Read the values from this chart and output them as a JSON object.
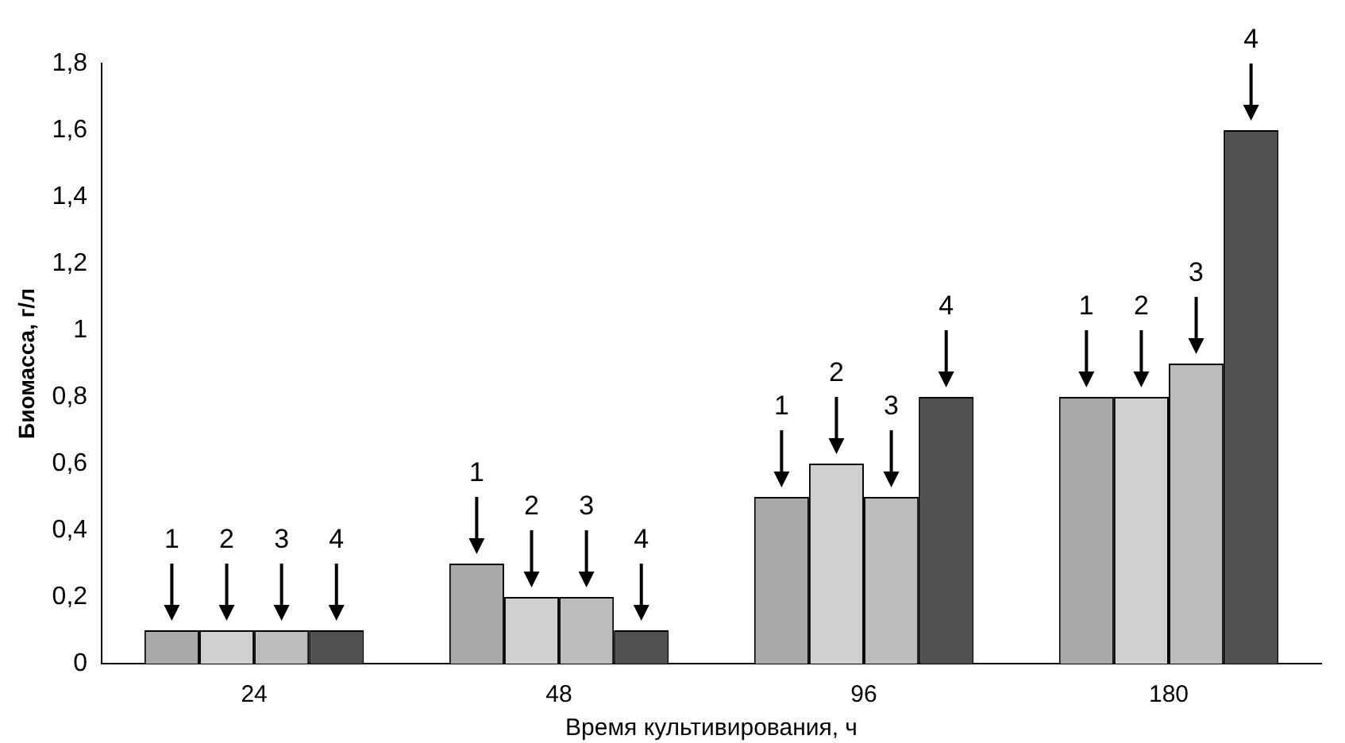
{
  "chart_data": {
    "type": "bar",
    "xlabel": "Время культивирования, ч",
    "ylabel": "Биомасса, г/л",
    "categories": [
      "24",
      "48",
      "96",
      "180"
    ],
    "series": [
      {
        "name": "1",
        "color": "#a8a8a8",
        "values": [
          0.1,
          0.3,
          0.5,
          0.8
        ]
      },
      {
        "name": "2",
        "color": "#d0d0d0",
        "values": [
          0.1,
          0.2,
          0.6,
          0.8
        ]
      },
      {
        "name": "3",
        "color": "#bcbcbc",
        "values": [
          0.1,
          0.2,
          0.5,
          0.9
        ]
      },
      {
        "name": "4",
        "color": "#505050",
        "values": [
          0.1,
          0.1,
          0.8,
          1.6
        ]
      }
    ],
    "ylim": [
      0,
      1.8
    ],
    "yticks": [
      0,
      {
        "value": 0.2,
        "label": "0,2"
      },
      {
        "value": 0.4,
        "label": "0,4"
      },
      {
        "value": 0.6,
        "label": "0,6"
      },
      {
        "value": 0.8,
        "label": "0,8"
      },
      1,
      {
        "value": 1.2,
        "label": "1,2"
      },
      {
        "value": 1.4,
        "label": "1,4"
      },
      {
        "value": 1.6,
        "label": "1,6"
      },
      {
        "value": 1.8,
        "label": "1,8"
      }
    ],
    "grid": false,
    "legend": false
  }
}
